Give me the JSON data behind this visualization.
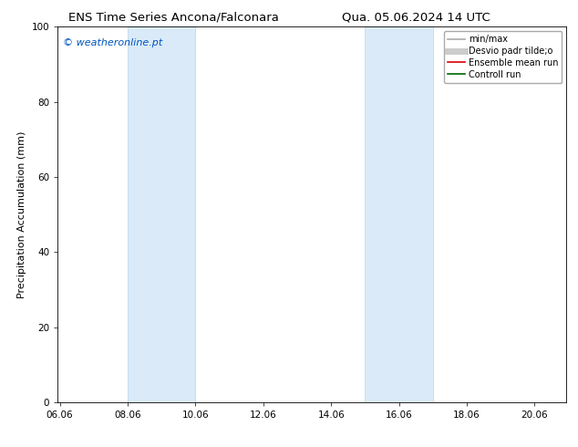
{
  "title_left": "ENS Time Series Ancona/Falconara",
  "title_right": "Qua. 05.06.2024 14 UTC",
  "ylabel": "Precipitation Accumulation (mm)",
  "xlim": [
    6.0,
    21.0
  ],
  "ylim": [
    0,
    100
  ],
  "yticks": [
    0,
    20,
    40,
    60,
    80,
    100
  ],
  "xticks": [
    6.06,
    8.06,
    10.06,
    12.06,
    14.06,
    16.06,
    18.06,
    20.06
  ],
  "xtick_labels": [
    "06.06",
    "08.06",
    "10.06",
    "12.06",
    "14.06",
    "16.06",
    "18.06",
    "20.06"
  ],
  "shaded_bands": [
    {
      "x_start": 8.06,
      "x_end": 10.06
    },
    {
      "x_start": 15.06,
      "x_end": 17.06
    }
  ],
  "shaded_color": "#daeaf8",
  "shaded_edge_color": "#b8d4ec",
  "watermark_text": "© weatheronline.pt",
  "watermark_color": "#0055bb",
  "legend_entries": [
    {
      "label": "min/max",
      "color": "#aaaaaa",
      "lw": 1.2
    },
    {
      "label": "Desvio padr tilde;o",
      "color": "#cccccc",
      "lw": 5
    },
    {
      "label": "Ensemble mean run",
      "color": "#dd0000",
      "lw": 1.2
    },
    {
      "label": "Controll run",
      "color": "#006600",
      "lw": 1.2
    }
  ],
  "bg_color": "#ffffff",
  "title_fontsize": 9.5,
  "ylabel_fontsize": 8,
  "tick_fontsize": 7.5,
  "watermark_fontsize": 8,
  "legend_fontsize": 7
}
